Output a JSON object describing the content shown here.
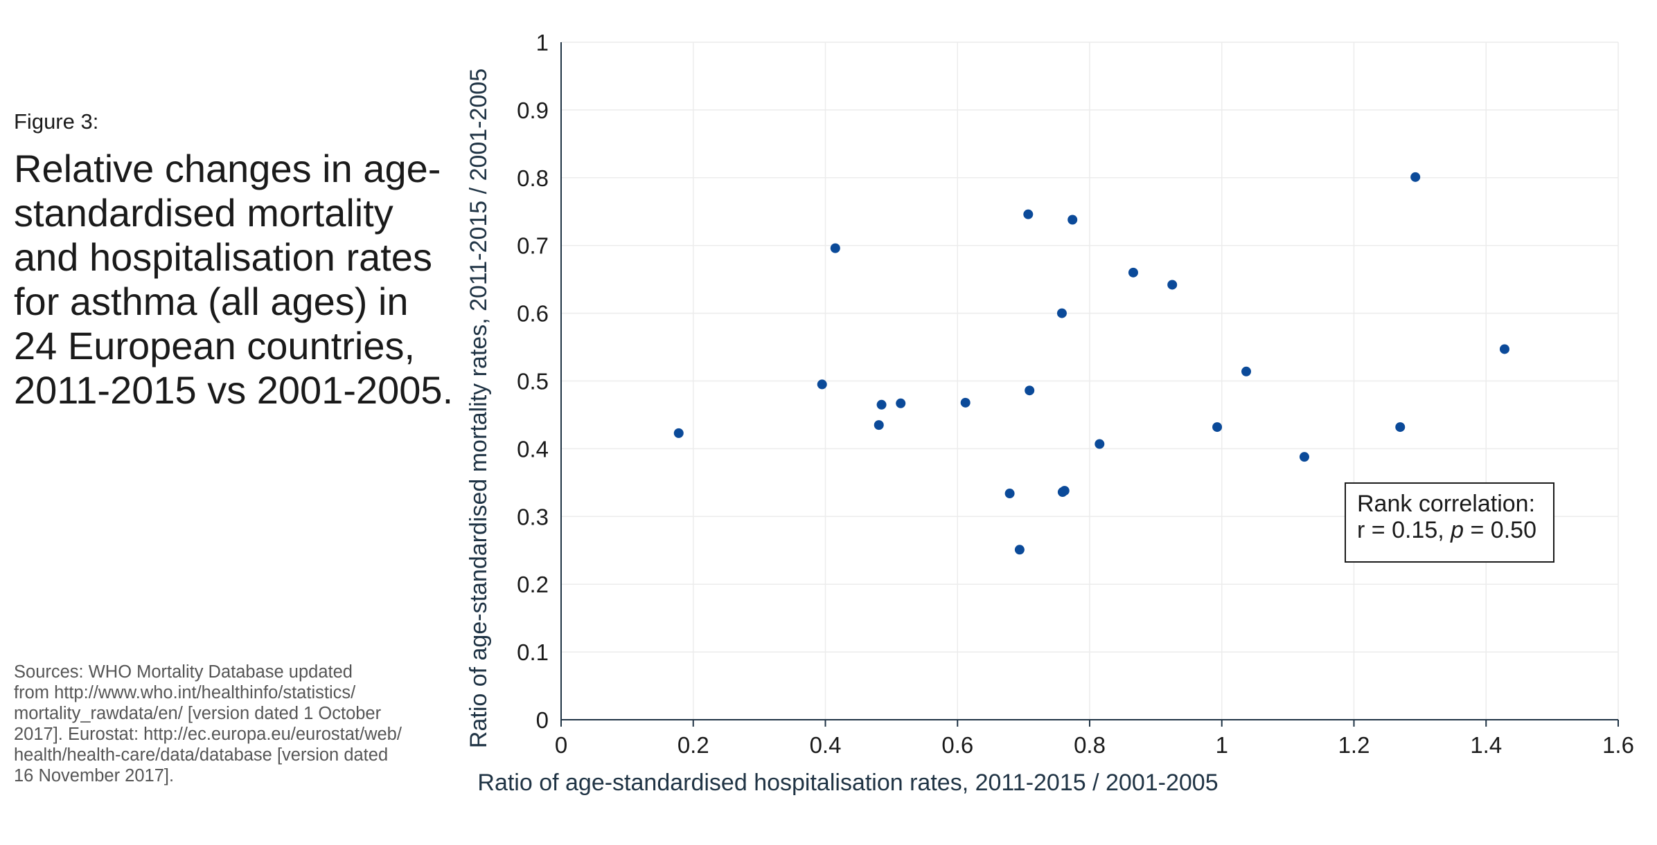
{
  "figure": {
    "label": "Figure 3:",
    "title": "Relative changes in age-standardised mortality and hospitalisation rates for asthma (all ages) in 24 European countries, 2011-2015 vs 2001-2005."
  },
  "sources": "Sources: WHO Mortality Database updated\nfrom http://www.who.int/healthinfo/statistics/\nmortality_rawdata/en/ [version dated 1 October\n2017]. Eurostat: http://ec.europa.eu/eurostat/web/\nhealth/health-care/data/database [version dated\n16 November 2017].",
  "annotation": {
    "line1": "Rank correlation:",
    "r_text": "r = 0.15, ",
    "p_symbol": "p",
    "p_text": " = 0.50"
  },
  "colors": {
    "marker": "#0b4a99",
    "axis_text": "#1f3344",
    "grid": "#ececec"
  },
  "chart_data": {
    "type": "scatter",
    "xlabel": "Ratio of age-standardised hospitalisation rates, 2011-2015 / 2001-2005",
    "ylabel": "Ratio of age-standardised mortality rates, 2011-2015 / 2001-2005",
    "xlim": [
      0,
      1.6
    ],
    "ylim": [
      0,
      1
    ],
    "x_ticks": [
      0,
      0.2,
      0.4,
      0.6,
      0.8,
      1,
      1.2,
      1.4,
      1.6
    ],
    "x_tick_labels": [
      "0",
      "0.2",
      "0.4",
      "0.6",
      "0.8",
      "1",
      "1.2",
      "1.4",
      "1.6"
    ],
    "y_ticks": [
      0,
      0.1,
      0.2,
      0.3,
      0.4,
      0.5,
      0.6,
      0.7,
      0.8,
      0.9,
      1
    ],
    "y_tick_labels": [
      "0",
      "0.1",
      "0.2",
      "0.3",
      "0.4",
      "0.5",
      "0.6",
      "0.7",
      "0.8",
      "0.9",
      "1"
    ],
    "grid": true,
    "points": [
      {
        "x": 0.178,
        "y": 0.423
      },
      {
        "x": 0.395,
        "y": 0.495
      },
      {
        "x": 0.415,
        "y": 0.696
      },
      {
        "x": 0.481,
        "y": 0.435
      },
      {
        "x": 0.485,
        "y": 0.465
      },
      {
        "x": 0.514,
        "y": 0.467
      },
      {
        "x": 0.612,
        "y": 0.468
      },
      {
        "x": 0.679,
        "y": 0.334
      },
      {
        "x": 0.694,
        "y": 0.251
      },
      {
        "x": 0.707,
        "y": 0.746
      },
      {
        "x": 0.709,
        "y": 0.486
      },
      {
        "x": 0.758,
        "y": 0.6
      },
      {
        "x": 0.759,
        "y": 0.336
      },
      {
        "x": 0.762,
        "y": 0.338
      },
      {
        "x": 0.774,
        "y": 0.738
      },
      {
        "x": 0.815,
        "y": 0.407
      },
      {
        "x": 0.866,
        "y": 0.66
      },
      {
        "x": 0.925,
        "y": 0.642
      },
      {
        "x": 0.993,
        "y": 0.432
      },
      {
        "x": 1.037,
        "y": 0.514
      },
      {
        "x": 1.125,
        "y": 0.388
      },
      {
        "x": 1.27,
        "y": 0.432
      },
      {
        "x": 1.293,
        "y": 0.801
      },
      {
        "x": 1.428,
        "y": 0.547
      }
    ]
  }
}
